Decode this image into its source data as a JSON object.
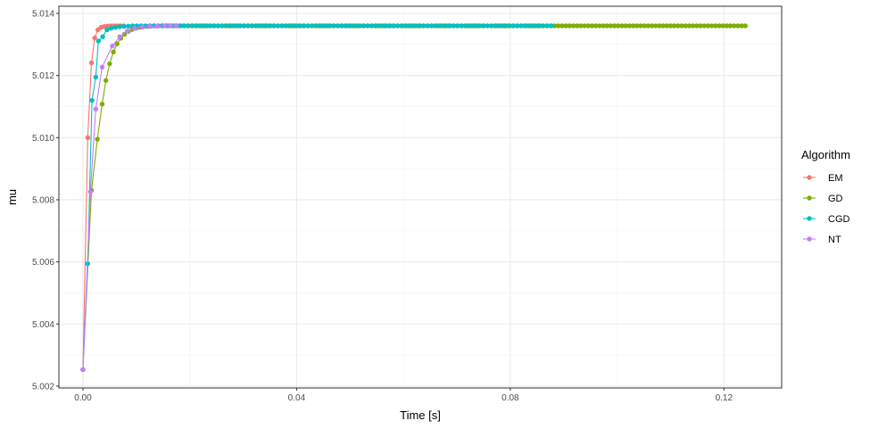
{
  "chart_data": {
    "type": "line",
    "title": "",
    "xlabel": "Time [s]",
    "ylabel": "mu",
    "xlim": [
      -0.0045,
      0.1308
    ],
    "ylim": [
      5.00194,
      5.01423
    ],
    "x_ticks": [
      0.0,
      0.04,
      0.08,
      0.12
    ],
    "x_tick_labels": [
      "0.00",
      "0.04",
      "0.08",
      "0.12"
    ],
    "y_ticks": [
      5.002,
      5.004,
      5.006,
      5.008,
      5.01,
      5.012,
      5.014
    ],
    "y_tick_labels": [
      "5.002",
      "5.004",
      "5.006",
      "5.008",
      "5.010",
      "5.012",
      "5.014"
    ],
    "grid": true,
    "legend": {
      "title": "Algorithm",
      "position": "right"
    },
    "series": [
      {
        "name": "EM",
        "color": "#F8766D",
        "points": [
          [
            0.0,
            5.00253
          ],
          [
            0.0009,
            5.01
          ],
          [
            0.0016,
            5.01241
          ],
          [
            0.0022,
            5.01321
          ],
          [
            0.0028,
            5.01347
          ],
          [
            0.0034,
            5.01355
          ],
          [
            0.004,
            5.01358
          ],
          [
            0.0046,
            5.01359
          ],
          [
            0.0052,
            5.0136
          ]
        ],
        "tail": {
          "from": 0.0058,
          "to": 0.008,
          "step": 0.0006,
          "value": 5.0136
        }
      },
      {
        "name": "GD",
        "color": "#7CAE00",
        "points": [
          [
            0.0,
            5.00253
          ],
          [
            0.0016,
            5.0083
          ],
          [
            0.0027,
            5.00995
          ],
          [
            0.0036,
            5.01108
          ],
          [
            0.0043,
            5.01184
          ],
          [
            0.005,
            5.01238
          ],
          [
            0.0057,
            5.01276
          ],
          [
            0.0064,
            5.01302
          ],
          [
            0.0071,
            5.0132
          ],
          [
            0.0078,
            5.01333
          ],
          [
            0.0085,
            5.01342
          ],
          [
            0.0092,
            5.01348
          ],
          [
            0.0099,
            5.01352
          ],
          [
            0.0106,
            5.01355
          ],
          [
            0.0113,
            5.01357
          ],
          [
            0.012,
            5.01358
          ],
          [
            0.0127,
            5.01359
          ]
        ],
        "tail": {
          "from": 0.0134,
          "to": 0.124,
          "step": 0.0007,
          "value": 5.0136
        }
      },
      {
        "name": "CGD",
        "color": "#00BFC4",
        "points": [
          [
            0.0,
            5.00253
          ],
          [
            0.0009,
            5.00594
          ],
          [
            0.0017,
            5.0112
          ],
          [
            0.0024,
            5.01195
          ],
          [
            0.0029,
            5.01311
          ],
          [
            0.0037,
            5.01325
          ],
          [
            0.0045,
            5.01347
          ],
          [
            0.0053,
            5.01352
          ],
          [
            0.0061,
            5.01355
          ],
          [
            0.0069,
            5.01357
          ],
          [
            0.0077,
            5.01358
          ],
          [
            0.0085,
            5.01359
          ]
        ],
        "tail": {
          "from": 0.0093,
          "to": 0.088,
          "step": 0.0008,
          "value": 5.0136
        }
      },
      {
        "name": "NT",
        "color": "#C77CFF",
        "points": [
          [
            0.0,
            5.00253
          ],
          [
            0.0014,
            5.00826
          ],
          [
            0.0024,
            5.01092
          ],
          [
            0.0036,
            5.01227
          ],
          [
            0.0055,
            5.01295
          ],
          [
            0.0069,
            5.01325
          ],
          [
            0.0083,
            5.01343
          ],
          [
            0.0097,
            5.01352
          ],
          [
            0.0111,
            5.01356
          ],
          [
            0.0125,
            5.01358
          ],
          [
            0.0139,
            5.01359
          ]
        ],
        "tail": {
          "from": 0.0153,
          "to": 0.0175,
          "step": 0.0011,
          "value": 5.0136
        }
      }
    ]
  }
}
